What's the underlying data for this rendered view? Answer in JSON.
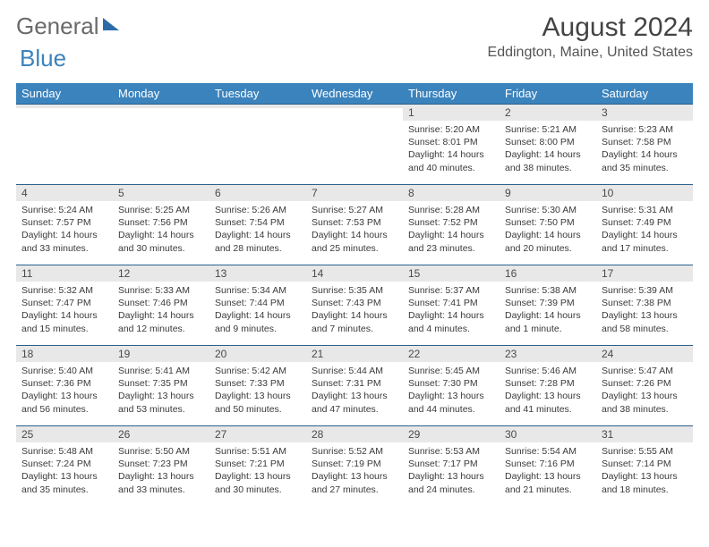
{
  "logo": {
    "word1": "General",
    "word2": "Blue"
  },
  "title": "August 2024",
  "location": "Eddington, Maine, United States",
  "colors": {
    "header_bg": "#3b83bd",
    "header_text": "#ffffff",
    "daynum_bg": "#e8e8e8",
    "border": "#2b5f8a",
    "body_text": "#3a3a3a"
  },
  "day_headers": [
    "Sunday",
    "Monday",
    "Tuesday",
    "Wednesday",
    "Thursday",
    "Friday",
    "Saturday"
  ],
  "weeks": [
    [
      {
        "n": "",
        "sr": "",
        "ss": "",
        "dl": ""
      },
      {
        "n": "",
        "sr": "",
        "ss": "",
        "dl": ""
      },
      {
        "n": "",
        "sr": "",
        "ss": "",
        "dl": ""
      },
      {
        "n": "",
        "sr": "",
        "ss": "",
        "dl": ""
      },
      {
        "n": "1",
        "sr": "Sunrise: 5:20 AM",
        "ss": "Sunset: 8:01 PM",
        "dl": "Daylight: 14 hours and 40 minutes."
      },
      {
        "n": "2",
        "sr": "Sunrise: 5:21 AM",
        "ss": "Sunset: 8:00 PM",
        "dl": "Daylight: 14 hours and 38 minutes."
      },
      {
        "n": "3",
        "sr": "Sunrise: 5:23 AM",
        "ss": "Sunset: 7:58 PM",
        "dl": "Daylight: 14 hours and 35 minutes."
      }
    ],
    [
      {
        "n": "4",
        "sr": "Sunrise: 5:24 AM",
        "ss": "Sunset: 7:57 PM",
        "dl": "Daylight: 14 hours and 33 minutes."
      },
      {
        "n": "5",
        "sr": "Sunrise: 5:25 AM",
        "ss": "Sunset: 7:56 PM",
        "dl": "Daylight: 14 hours and 30 minutes."
      },
      {
        "n": "6",
        "sr": "Sunrise: 5:26 AM",
        "ss": "Sunset: 7:54 PM",
        "dl": "Daylight: 14 hours and 28 minutes."
      },
      {
        "n": "7",
        "sr": "Sunrise: 5:27 AM",
        "ss": "Sunset: 7:53 PM",
        "dl": "Daylight: 14 hours and 25 minutes."
      },
      {
        "n": "8",
        "sr": "Sunrise: 5:28 AM",
        "ss": "Sunset: 7:52 PM",
        "dl": "Daylight: 14 hours and 23 minutes."
      },
      {
        "n": "9",
        "sr": "Sunrise: 5:30 AM",
        "ss": "Sunset: 7:50 PM",
        "dl": "Daylight: 14 hours and 20 minutes."
      },
      {
        "n": "10",
        "sr": "Sunrise: 5:31 AM",
        "ss": "Sunset: 7:49 PM",
        "dl": "Daylight: 14 hours and 17 minutes."
      }
    ],
    [
      {
        "n": "11",
        "sr": "Sunrise: 5:32 AM",
        "ss": "Sunset: 7:47 PM",
        "dl": "Daylight: 14 hours and 15 minutes."
      },
      {
        "n": "12",
        "sr": "Sunrise: 5:33 AM",
        "ss": "Sunset: 7:46 PM",
        "dl": "Daylight: 14 hours and 12 minutes."
      },
      {
        "n": "13",
        "sr": "Sunrise: 5:34 AM",
        "ss": "Sunset: 7:44 PM",
        "dl": "Daylight: 14 hours and 9 minutes."
      },
      {
        "n": "14",
        "sr": "Sunrise: 5:35 AM",
        "ss": "Sunset: 7:43 PM",
        "dl": "Daylight: 14 hours and 7 minutes."
      },
      {
        "n": "15",
        "sr": "Sunrise: 5:37 AM",
        "ss": "Sunset: 7:41 PM",
        "dl": "Daylight: 14 hours and 4 minutes."
      },
      {
        "n": "16",
        "sr": "Sunrise: 5:38 AM",
        "ss": "Sunset: 7:39 PM",
        "dl": "Daylight: 14 hours and 1 minute."
      },
      {
        "n": "17",
        "sr": "Sunrise: 5:39 AM",
        "ss": "Sunset: 7:38 PM",
        "dl": "Daylight: 13 hours and 58 minutes."
      }
    ],
    [
      {
        "n": "18",
        "sr": "Sunrise: 5:40 AM",
        "ss": "Sunset: 7:36 PM",
        "dl": "Daylight: 13 hours and 56 minutes."
      },
      {
        "n": "19",
        "sr": "Sunrise: 5:41 AM",
        "ss": "Sunset: 7:35 PM",
        "dl": "Daylight: 13 hours and 53 minutes."
      },
      {
        "n": "20",
        "sr": "Sunrise: 5:42 AM",
        "ss": "Sunset: 7:33 PM",
        "dl": "Daylight: 13 hours and 50 minutes."
      },
      {
        "n": "21",
        "sr": "Sunrise: 5:44 AM",
        "ss": "Sunset: 7:31 PM",
        "dl": "Daylight: 13 hours and 47 minutes."
      },
      {
        "n": "22",
        "sr": "Sunrise: 5:45 AM",
        "ss": "Sunset: 7:30 PM",
        "dl": "Daylight: 13 hours and 44 minutes."
      },
      {
        "n": "23",
        "sr": "Sunrise: 5:46 AM",
        "ss": "Sunset: 7:28 PM",
        "dl": "Daylight: 13 hours and 41 minutes."
      },
      {
        "n": "24",
        "sr": "Sunrise: 5:47 AM",
        "ss": "Sunset: 7:26 PM",
        "dl": "Daylight: 13 hours and 38 minutes."
      }
    ],
    [
      {
        "n": "25",
        "sr": "Sunrise: 5:48 AM",
        "ss": "Sunset: 7:24 PM",
        "dl": "Daylight: 13 hours and 35 minutes."
      },
      {
        "n": "26",
        "sr": "Sunrise: 5:50 AM",
        "ss": "Sunset: 7:23 PM",
        "dl": "Daylight: 13 hours and 33 minutes."
      },
      {
        "n": "27",
        "sr": "Sunrise: 5:51 AM",
        "ss": "Sunset: 7:21 PM",
        "dl": "Daylight: 13 hours and 30 minutes."
      },
      {
        "n": "28",
        "sr": "Sunrise: 5:52 AM",
        "ss": "Sunset: 7:19 PM",
        "dl": "Daylight: 13 hours and 27 minutes."
      },
      {
        "n": "29",
        "sr": "Sunrise: 5:53 AM",
        "ss": "Sunset: 7:17 PM",
        "dl": "Daylight: 13 hours and 24 minutes."
      },
      {
        "n": "30",
        "sr": "Sunrise: 5:54 AM",
        "ss": "Sunset: 7:16 PM",
        "dl": "Daylight: 13 hours and 21 minutes."
      },
      {
        "n": "31",
        "sr": "Sunrise: 5:55 AM",
        "ss": "Sunset: 7:14 PM",
        "dl": "Daylight: 13 hours and 18 minutes."
      }
    ]
  ]
}
